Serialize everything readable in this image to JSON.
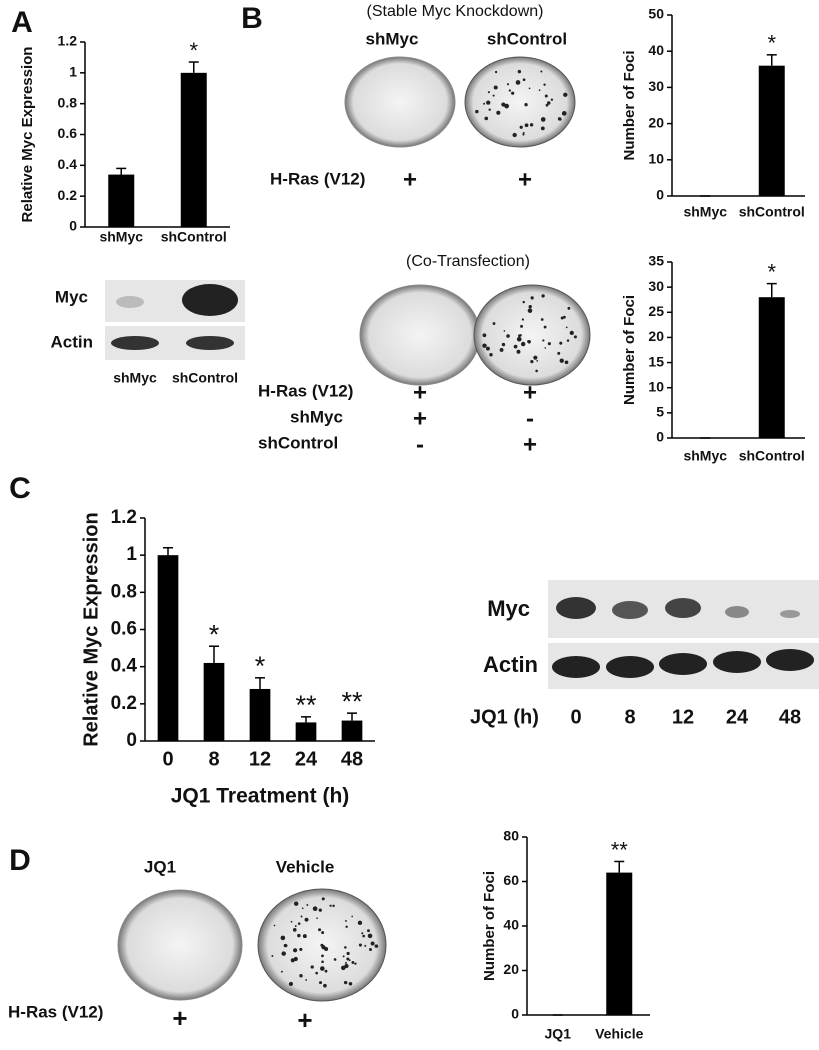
{
  "chart_data": [
    {
      "type": "bar",
      "ylabel": "Relative Myc Expression",
      "categories": [
        "shMyc",
        "shControl"
      ],
      "values": [
        0.34,
        1.0
      ],
      "errors": [
        0.04,
        0.07
      ],
      "significance": [
        null,
        "*"
      ],
      "color": "#000000",
      "ylim": [
        0,
        1.2
      ],
      "yticks": [
        0,
        0.2,
        0.4,
        0.6,
        0.8,
        1,
        1.2
      ]
    },
    {
      "type": "bar",
      "ylabel": "Number of Foci",
      "categories": [
        "shMyc",
        "shControl"
      ],
      "values": [
        0,
        36
      ],
      "errors": [
        0,
        3
      ],
      "significance": [
        null,
        "*"
      ],
      "color": "#000000",
      "ylim": [
        0,
        50
      ],
      "yticks": [
        0,
        10,
        20,
        30,
        40,
        50
      ]
    },
    {
      "type": "bar",
      "ylabel": "Number of Foci",
      "categories": [
        "shMyc",
        "shControl"
      ],
      "values": [
        0,
        28
      ],
      "errors": [
        0,
        2.7
      ],
      "significance": [
        null,
        "*"
      ],
      "color": "#000000",
      "ylim": [
        0,
        35
      ],
      "yticks": [
        0,
        5,
        10,
        15,
        20,
        25,
        30,
        35
      ]
    },
    {
      "type": "bar",
      "ylabel": "Relative Myc Expression",
      "xlabel": "JQ1 Treatment (h)",
      "categories": [
        "0",
        "8",
        "12",
        "24",
        "48"
      ],
      "values": [
        1.0,
        0.42,
        0.28,
        0.1,
        0.11
      ],
      "errors": [
        0.04,
        0.09,
        0.06,
        0.03,
        0.04
      ],
      "significance": [
        null,
        "*",
        "*",
        "**",
        "**"
      ],
      "color": "#000000",
      "ylim": [
        0,
        1.2
      ],
      "yticks": [
        0,
        0.2,
        0.4,
        0.6,
        0.8,
        1,
        1.2
      ]
    },
    {
      "type": "bar",
      "ylabel": "Number of Foci",
      "categories": [
        "JQ1",
        "Vehicle"
      ],
      "values": [
        0,
        64
      ],
      "errors": [
        0,
        5
      ],
      "significance": [
        null,
        "**"
      ],
      "color": "#000000",
      "ylim": [
        0,
        80
      ],
      "yticks": [
        0,
        20,
        40,
        60,
        80
      ]
    }
  ],
  "figure": {
    "panel_labels": [
      "A",
      "B",
      "C",
      "D"
    ],
    "a_blot": {
      "rows": [
        "Myc",
        "Actin"
      ],
      "lanes": [
        "shMyc",
        "shControl"
      ]
    },
    "b_stable": {
      "title": "(Stable Myc Knockdown)",
      "lanes": [
        "shMyc",
        "shControl"
      ],
      "rows": [
        {
          "label": "H-Ras (V12)",
          "marks": [
            "+",
            "+"
          ]
        }
      ]
    },
    "b_cotransfection": {
      "title": "(Co-Transfection)",
      "rows": [
        {
          "label": "H-Ras (V12)",
          "marks": [
            "+",
            "+"
          ]
        },
        {
          "label": "shMyc",
          "marks": [
            "+",
            "-"
          ]
        },
        {
          "label": "shControl",
          "marks": [
            "-",
            "+"
          ]
        }
      ]
    },
    "c_blot": {
      "rows": [
        "Myc",
        "Actin"
      ],
      "lane_title": "JQ1 (h)",
      "lanes": [
        "0",
        "8",
        "12",
        "24",
        "48"
      ]
    },
    "d_plates": {
      "lanes": [
        "JQ1",
        "Vehicle"
      ],
      "rows": [
        {
          "label": "H-Ras (V12)",
          "marks": [
            "+",
            "+"
          ]
        }
      ]
    }
  }
}
